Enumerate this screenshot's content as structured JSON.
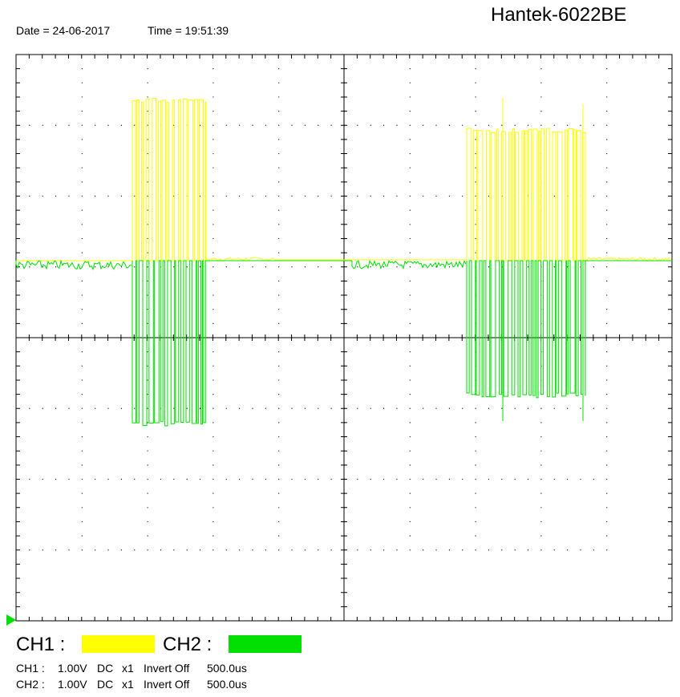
{
  "header": {
    "model": "Hantek-6022BE",
    "date": "Date = 24-06-2017",
    "time": "Time = 19:51:39"
  },
  "legend": [
    {
      "label": "CH1 :",
      "color": "#ffff00"
    },
    {
      "label": "CH2 :",
      "color": "#00e000"
    }
  ],
  "status": [
    {
      "channel": "CH1 :",
      "volts": "1.00V",
      "coupling": "DC",
      "probe": "x1",
      "invert": "Invert Off",
      "timebase": "500.0us"
    },
    {
      "channel": "CH2 :",
      "volts": "1.00V",
      "coupling": "DC",
      "probe": "x1",
      "invert": "Invert Off",
      "timebase": "500.0us"
    }
  ]
}
